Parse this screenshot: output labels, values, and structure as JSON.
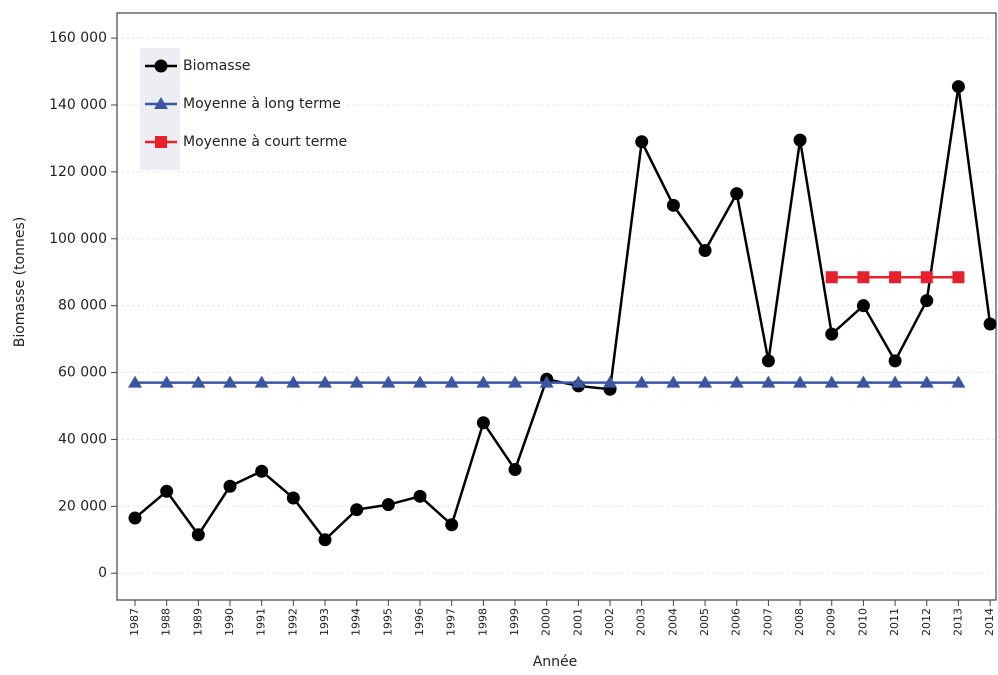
{
  "chart_data": {
    "type": "line",
    "x_label": "Année",
    "y_label": "Biomasse (tonnes)",
    "categories": [
      "1987",
      "1988",
      "1989",
      "1990",
      "1991",
      "1992",
      "1993",
      "1994",
      "1995",
      "1996",
      "1997",
      "1998",
      "1999",
      "2000",
      "2001",
      "2002",
      "2003",
      "2004",
      "2005",
      "2006",
      "2007",
      "2008",
      "2009",
      "2010",
      "2011",
      "2012",
      "2013",
      "2014"
    ],
    "series": [
      {
        "name": "Biomasse",
        "color": "#000000",
        "marker": "circle",
        "values": [
          16500,
          24500,
          11500,
          26000,
          30500,
          22500,
          10000,
          19000,
          20500,
          23000,
          14500,
          45000,
          31000,
          58000,
          56000,
          55000,
          129000,
          110000,
          96500,
          113500,
          63500,
          129500,
          71500,
          80000,
          63500,
          81500,
          145500,
          74500
        ]
      },
      {
        "name": "Moyenne à long terme",
        "color": "#3a55a4",
        "marker": "triangle",
        "values": [
          57000,
          57000,
          57000,
          57000,
          57000,
          57000,
          57000,
          57000,
          57000,
          57000,
          57000,
          57000,
          57000,
          57000,
          57000,
          57000,
          57000,
          57000,
          57000,
          57000,
          57000,
          57000,
          57000,
          57000,
          57000,
          57000,
          57000,
          null
        ]
      },
      {
        "name": "Moyenne à court terme",
        "color": "#e8202a",
        "marker": "square",
        "values": [
          null,
          null,
          null,
          null,
          null,
          null,
          null,
          null,
          null,
          null,
          null,
          null,
          null,
          null,
          null,
          null,
          null,
          null,
          null,
          null,
          null,
          null,
          88500,
          88500,
          88500,
          88500,
          88500,
          null
        ]
      }
    ],
    "ylim": [
      -8000,
      167500
    ],
    "yticks": [
      {
        "value": 0,
        "label": "0"
      },
      {
        "value": 20000,
        "label": "20 000"
      },
      {
        "value": 40000,
        "label": "40 000"
      },
      {
        "value": 60000,
        "label": "60 000"
      },
      {
        "value": 80000,
        "label": "80 000"
      },
      {
        "value": 100000,
        "label": "100 000"
      },
      {
        "value": 120000,
        "label": "120 000"
      },
      {
        "value": 140000,
        "label": "140 000"
      },
      {
        "value": 160000,
        "label": "160 000"
      }
    ],
    "grid": true,
    "legend": "top-left"
  }
}
